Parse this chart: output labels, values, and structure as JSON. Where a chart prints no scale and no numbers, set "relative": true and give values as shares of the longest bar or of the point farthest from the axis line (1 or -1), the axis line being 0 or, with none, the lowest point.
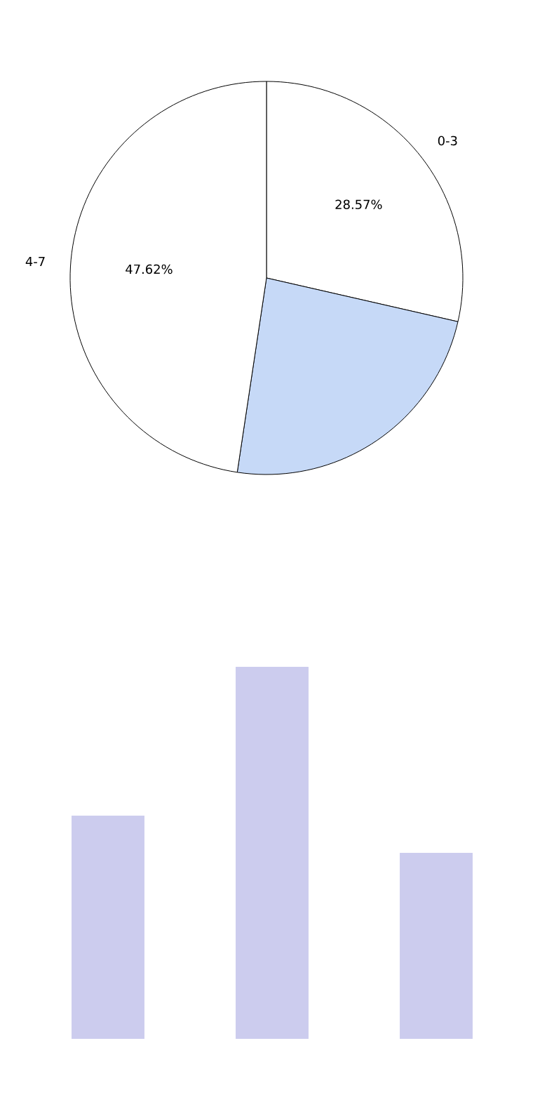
{
  "chart_data": [
    {
      "type": "pie",
      "categories": [
        "0-3",
        null,
        "4-7"
      ],
      "values": [
        28.57,
        23.81,
        47.62
      ],
      "colors": [
        "#ffffff",
        "#c6d9f7",
        "#ffffff"
      ],
      "value_labels": [
        "28.57%",
        null,
        "47.62%"
      ]
    },
    {
      "type": "bar",
      "categories": [
        null,
        null,
        null
      ],
      "values": [
        0.6,
        1,
        0.5
      ],
      "color": "#ccccee",
      "relative": true
    }
  ]
}
